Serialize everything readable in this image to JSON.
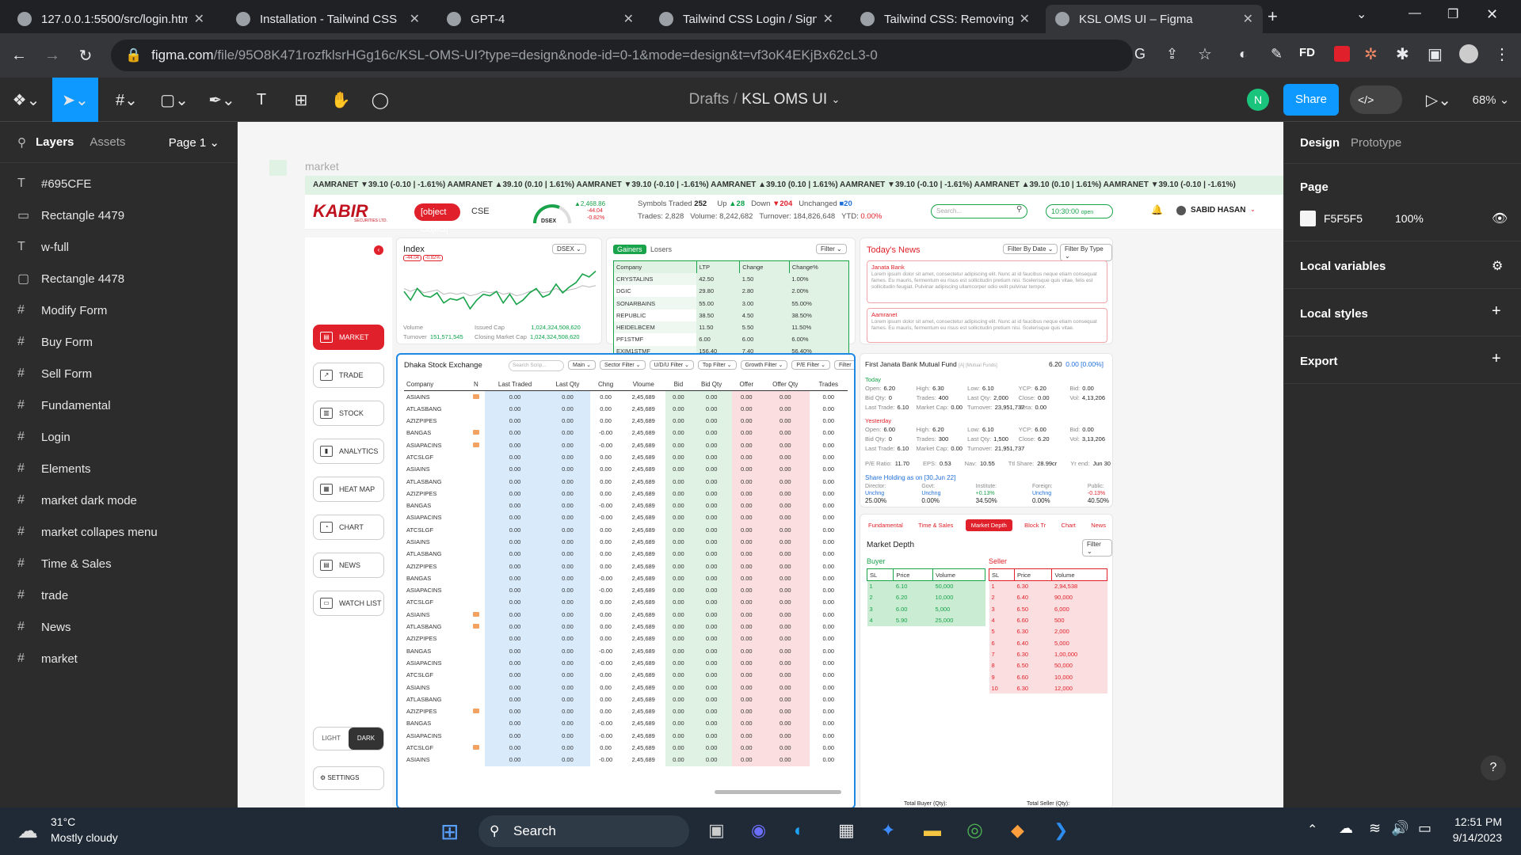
{
  "browser": {
    "tabs": [
      {
        "title": "127.0.0.1:5500/src/login.htm"
      },
      {
        "title": "Installation - Tailwind CSS"
      },
      {
        "title": "GPT-4"
      },
      {
        "title": "Tailwind CSS Login / Sign In"
      },
      {
        "title": "Tailwind CSS: Removing the"
      },
      {
        "title": "KSL OMS UI – Figma"
      }
    ],
    "url_domain": "figma.com",
    "url_path": "/file/95O8K471rozfklsrHGg16c/KSL-OMS-UI?type=design&node-id=0-1&mode=design&t=vf3oK4EKjBx62cL3-0",
    "profile": "FD"
  },
  "figma": {
    "breadcrumb_parent": "Drafts",
    "breadcrumb_sep": "/",
    "file_name": "KSL OMS UI",
    "avatar": "N",
    "share_label": "Share",
    "zoom": "68%",
    "layers_tab": "Layers",
    "assets_tab": "Assets",
    "page_selector": "Page 1",
    "layers": [
      {
        "icon": "T",
        "name": "#695CFE"
      },
      {
        "icon": "▭",
        "name": "Rectangle 4479"
      },
      {
        "icon": "T",
        "name": "w-full"
      },
      {
        "icon": "▢",
        "name": "Rectangle 4478"
      },
      {
        "icon": "#",
        "name": "Modify Form"
      },
      {
        "icon": "#",
        "name": "Buy Form"
      },
      {
        "icon": "#",
        "name": "Sell Form"
      },
      {
        "icon": "#",
        "name": "Fundamental"
      },
      {
        "icon": "#",
        "name": "Login"
      },
      {
        "icon": "#",
        "name": "Elements"
      },
      {
        "icon": "#",
        "name": "market dark mode"
      },
      {
        "icon": "#",
        "name": "market collapes menu"
      },
      {
        "icon": "#",
        "name": "Time & Sales"
      },
      {
        "icon": "#",
        "name": "trade"
      },
      {
        "icon": "#",
        "name": "News"
      },
      {
        "icon": "#",
        "name": "market"
      }
    ],
    "right": {
      "design_tab": "Design",
      "prototype_tab": "Prototype",
      "page_label": "Page",
      "page_color": "F5F5F5",
      "page_opacity": "100%",
      "local_variables": "Local variables",
      "local_styles": "Local styles",
      "export": "Export"
    },
    "frame_label": "market"
  },
  "app": {
    "ticker": "AAMRANET ▼39.10 (-0.10 | -1.61%)   AAMRANET ▲39.10 (0.10 | 1.61%)   AAMRANET ▼39.10 (-0.10 | -1.61%)   AAMRANET ▲39.10 (0.10 | 1.61%)   AAMRANET ▼39.10 (-0.10 | -1.61%)   AAMRANET ▲39.10 (0.10 | 1.61%)   AAMRANET ▼39.10 (-0.10 | -1.61%)",
    "logo": "KABIR",
    "logo_sub": "SECURITIES LTD.",
    "dse": {
      "title": "Dhaka Stock Exchange",
      "search": "Search Scrip...",
      "f": [
        "Main",
        "Sector Filter",
        "U/D/U Filter",
        "Top Filter",
        "Growth Filter",
        "P/E Filter",
        "Filter"
      ],
      "headers": [
        "Company",
        "N",
        "Last Traded",
        "Last Qty",
        "Chng",
        "Vloume",
        "Bid",
        "Bid Qty",
        "Offer",
        "Offer Qty",
        "Trades"
      ],
      "rows": [
        [
          "ASIAINS",
          "1",
          "0.00",
          "0.00",
          "0.00",
          "2,45,689",
          "0.00",
          "0.00",
          "0.00",
          "0.00",
          "0.00"
        ],
        [
          "ATLASBANG",
          "0",
          "0.00",
          "0.00",
          "0.00",
          "2,45,689",
          "0.00",
          "0.00",
          "0.00",
          "0.00",
          "0.00"
        ],
        [
          "AZIZPIPES",
          "0",
          "0.00",
          "0.00",
          "0.00",
          "2,45,689",
          "0.00",
          "0.00",
          "0.00",
          "0.00",
          "0.00"
        ],
        [
          "BANGAS",
          "1",
          "0.00",
          "0.00",
          "-0.00",
          "2,45,689",
          "0.00",
          "0.00",
          "0.00",
          "0.00",
          "0.00"
        ],
        [
          "ASIAPACINS",
          "1",
          "0.00",
          "0.00",
          "-0.00",
          "2,45,689",
          "0.00",
          "0.00",
          "0.00",
          "0.00",
          "0.00"
        ],
        [
          "ATCSLGF",
          "0",
          "0.00",
          "0.00",
          "0.00",
          "2,45,689",
          "0.00",
          "0.00",
          "0.00",
          "0.00",
          "0.00"
        ],
        [
          "ASIAINS",
          "0",
          "0.00",
          "0.00",
          "0.00",
          "2,45,689",
          "0.00",
          "0.00",
          "0.00",
          "0.00",
          "0.00"
        ],
        [
          "ATLASBANG",
          "0",
          "0.00",
          "0.00",
          "0.00",
          "2,45,689",
          "0.00",
          "0.00",
          "0.00",
          "0.00",
          "0.00"
        ],
        [
          "AZIZPIPES",
          "0",
          "0.00",
          "0.00",
          "0.00",
          "2,45,689",
          "0.00",
          "0.00",
          "0.00",
          "0.00",
          "0.00"
        ],
        [
          "BANGAS",
          "0",
          "0.00",
          "0.00",
          "-0.00",
          "2,45,689",
          "0.00",
          "0.00",
          "0.00",
          "0.00",
          "0.00"
        ],
        [
          "ASIAPACINS",
          "0",
          "0.00",
          "0.00",
          "-0.00",
          "2,45,689",
          "0.00",
          "0.00",
          "0.00",
          "0.00",
          "0.00"
        ],
        [
          "ATCSLGF",
          "0",
          "0.00",
          "0.00",
          "0.00",
          "2,45,689",
          "0.00",
          "0.00",
          "0.00",
          "0.00",
          "0.00"
        ],
        [
          "ASIAINS",
          "0",
          "0.00",
          "0.00",
          "0.00",
          "2,45,689",
          "0.00",
          "0.00",
          "0.00",
          "0.00",
          "0.00"
        ],
        [
          "ATLASBANG",
          "0",
          "0.00",
          "0.00",
          "0.00",
          "2,45,689",
          "0.00",
          "0.00",
          "0.00",
          "0.00",
          "0.00"
        ],
        [
          "AZIZPIPES",
          "0",
          "0.00",
          "0.00",
          "0.00",
          "2,45,689",
          "0.00",
          "0.00",
          "0.00",
          "0.00",
          "0.00"
        ],
        [
          "BANGAS",
          "0",
          "0.00",
          "0.00",
          "-0.00",
          "2,45,689",
          "0.00",
          "0.00",
          "0.00",
          "0.00",
          "0.00"
        ],
        [
          "ASIAPACINS",
          "0",
          "0.00",
          "0.00",
          "-0.00",
          "2,45,689",
          "0.00",
          "0.00",
          "0.00",
          "0.00",
          "0.00"
        ],
        [
          "ATCSLGF",
          "0",
          "0.00",
          "0.00",
          "0.00",
          "2,45,689",
          "0.00",
          "0.00",
          "0.00",
          "0.00",
          "0.00"
        ],
        [
          "ASIAINS",
          "1",
          "0.00",
          "0.00",
          "0.00",
          "2,45,689",
          "0.00",
          "0.00",
          "0.00",
          "0.00",
          "0.00"
        ],
        [
          "ATLASBANG",
          "1",
          "0.00",
          "0.00",
          "0.00",
          "2,45,689",
          "0.00",
          "0.00",
          "0.00",
          "0.00",
          "0.00"
        ],
        [
          "AZIZPIPES",
          "0",
          "0.00",
          "0.00",
          "0.00",
          "2,45,689",
          "0.00",
          "0.00",
          "0.00",
          "0.00",
          "0.00"
        ],
        [
          "BANGAS",
          "0",
          "0.00",
          "0.00",
          "-0.00",
          "2,45,689",
          "0.00",
          "0.00",
          "0.00",
          "0.00",
          "0.00"
        ],
        [
          "ASIAPACINS",
          "0",
          "0.00",
          "0.00",
          "-0.00",
          "2,45,689",
          "0.00",
          "0.00",
          "0.00",
          "0.00",
          "0.00"
        ],
        [
          "ATCSLGF",
          "0",
          "0.00",
          "0.00",
          "0.00",
          "2,45,689",
          "0.00",
          "0.00",
          "0.00",
          "0.00",
          "0.00"
        ],
        [
          "ASIAINS",
          "0",
          "0.00",
          "0.00",
          "0.00",
          "2,45,689",
          "0.00",
          "0.00",
          "0.00",
          "0.00",
          "0.00"
        ],
        [
          "ATLASBANG",
          "0",
          "0.00",
          "0.00",
          "0.00",
          "2,45,689",
          "0.00",
          "0.00",
          "0.00",
          "0.00",
          "0.00"
        ],
        [
          "AZIZPIPES",
          "1",
          "0.00",
          "0.00",
          "0.00",
          "2,45,689",
          "0.00",
          "0.00",
          "0.00",
          "0.00",
          "0.00"
        ],
        [
          "BANGAS",
          "0",
          "0.00",
          "0.00",
          "-0.00",
          "2,45,689",
          "0.00",
          "0.00",
          "0.00",
          "0.00",
          "0.00"
        ],
        [
          "ASIAPACINS",
          "0",
          "0.00",
          "0.00",
          "-0.00",
          "2,45,689",
          "0.00",
          "0.00",
          "0.00",
          "0.00",
          "0.00"
        ],
        [
          "ATCSLGF",
          "1",
          "0.00",
          "0.00",
          "0.00",
          "2,45,689",
          "0.00",
          "0.00",
          "0.00",
          "0.00",
          "0.00"
        ],
        [
          "ASIAINS",
          "0",
          "0.00",
          "0.00",
          "-0.00",
          "2,45,689",
          "0.00",
          "0.00",
          "0.00",
          "0.00",
          "0.00"
        ]
      ]
    },
    "cse": "CSE",
    "dsex_val": "▲2,468.86",
    "dsex_ch": "-44.04",
    "dsex_pct": "-0.82%",
    "dsex_label": "DSEX",
    "stats": {
      "symbols_label": "Symbols Traded",
      "symbols": "252",
      "up_label": "Up",
      "up": "▲28",
      "down_label": "Down",
      "down": "▼204",
      "unch_label": "Unchanged",
      "unch": "■20",
      "trades_label": "Trades:",
      "trades": "2,828",
      "volume_label": "Volume:",
      "volume": "8,242,682",
      "turnover_label": "Turnover:",
      "turnover": "184,826,648",
      "ytd_label": "YTD:",
      "ytd": "0.00%"
    },
    "search_ph": "Search...",
    "clock": "10:30:00",
    "clock_state": "open",
    "user": "SABID HASAN",
    "menu": [
      {
        "label": "MARKET",
        "icon": "▤"
      },
      {
        "label": "TRADE",
        "icon": "↗"
      },
      {
        "label": "STOCK",
        "icon": "▥"
      },
      {
        "label": "ANALYTICS",
        "icon": "▮"
      },
      {
        "label": "HEAT MAP",
        "icon": "▦"
      },
      {
        "label": "CHART",
        "icon": "◔"
      },
      {
        "label": "NEWS",
        "icon": "▤"
      },
      {
        "label": "WATCH LIST",
        "icon": "▭"
      }
    ],
    "light": "LIGHT",
    "dark": "DARK",
    "settings": "SETTINGS",
    "index": {
      "title": "Index",
      "sel": "DSEX",
      "b1": "-44.04",
      "b2": "-0.82%",
      "volume_label": "Volume",
      "volume": "",
      "turnover_label": "Turnover",
      "turnover": "151,571,545",
      "issued_label": "Issued Cap",
      "issued": "1,024,324,508,620",
      "closing_label": "Closing Market Cap",
      "closing": "1,024,324,508,620"
    },
    "gainers": {
      "tab1": "Gainers",
      "tab2": "Losers",
      "filter": "Filter",
      "headers": [
        "Company",
        "LTP",
        "Change",
        "Change%"
      ],
      "rows": [
        [
          "CRYSTALINS",
          "42.50",
          "1.50",
          "1.00%"
        ],
        [
          "DGIC",
          "29.80",
          "2.80",
          "2.00%"
        ],
        [
          "SONARBAINS",
          "55.00",
          "3.00",
          "55.00%"
        ],
        [
          "REPUBLIC",
          "38.50",
          "4.50",
          "38.50%"
        ],
        [
          "HEIDELBCEM",
          "11.50",
          "5.50",
          "11.50%"
        ],
        [
          "PF1STMF",
          "6.00",
          "6.00",
          "6.00%"
        ],
        [
          "EXIM1STMF",
          "156.40",
          "7.40",
          "56.40%"
        ]
      ]
    },
    "news": {
      "title": "Today's News",
      "f1": "Filter By Date",
      "f2": "Filter By Type",
      "items": [
        {
          "head": "Janata Bank",
          "body": "Lorem ipsum dolor sit amet, consectetur adipiscing elit. Nunc at id faucibus neque etiam consequat fames. Eu mauris, fermentum eu risus est sollicitudin pretium nisi. Scelerisque quis vitae, felis est sollicitudin feugiat. Pulvinar adipiscing ullamcorper odio velit pulvinar tempor."
        },
        {
          "head": "Aamranet",
          "body": "Lorem ipsum dolor sit amet, consectetur adipiscing elit. Nunc at id faucibus neque etiam consequat fames. Eu mauris, fermentum eu risus est sollicitudin pretium nisi. Scelerisque quis vitae."
        }
      ]
    },
    "fund": {
      "name": "First Janata Bank Mutual Fund",
      "tag": "[A] [Mutual Funds]",
      "price": "6.20",
      "change": "0.00 [0.00%]",
      "today_label": "Today",
      "yesterday_label": "Yesterday",
      "today": [
        [
          "Open:",
          "6.20",
          "High:",
          "6.30",
          "Low:",
          "6.10",
          "YCP:",
          "6.20",
          "Bid:",
          "0.00"
        ],
        [
          "Bid Qty:",
          "0",
          "Trades:",
          "400",
          "Last Qty:",
          "2,000",
          "Close:",
          "0.00",
          "Vol:",
          "4,13,206"
        ],
        [
          "Last Trade:",
          "6.10",
          "Market Cap:",
          "0.00",
          "Turnover:",
          "23,951,737",
          "Beta:",
          "0.00",
          "",
          ""
        ]
      ],
      "yest": [
        [
          "Open:",
          "6.00",
          "High:",
          "6.20",
          "Low:",
          "6.10",
          "YCP:",
          "6.00",
          "Bid:",
          "0.00"
        ],
        [
          "Bid Qty:",
          "0",
          "Trades:",
          "300",
          "Last Qty:",
          "1,500",
          "Close:",
          "6.20",
          "Vol:",
          "3,13,206"
        ],
        [
          "Last Trade:",
          "6.10",
          "Market Cap:",
          "0.00",
          "Turnover:",
          "21,951,737",
          "",
          "",
          "",
          ""
        ]
      ],
      "ratios": [
        [
          "P/E Ratio:",
          "11.70"
        ],
        [
          "EPS:",
          "0.53"
        ],
        [
          "Nav:",
          "10.55"
        ],
        [
          "Ttl Share:",
          "28.99cr"
        ],
        [
          "Yr end:",
          "Jun 30"
        ]
      ],
      "share_title": "Share Holding as on [30,Jun 22]",
      "holders": [
        {
          "k": "Director:",
          "c": "Unchng",
          "v": "25.00%"
        },
        {
          "k": "Govt:",
          "c": "Unchng",
          "v": "0.00%"
        },
        {
          "k": "Institute:",
          "c": "+0.13%",
          "v": "34.50%"
        },
        {
          "k": "Foreign:",
          "c": "Unchng",
          "v": "0.00%"
        },
        {
          "k": "Public:",
          "c": "-0.13%",
          "v": "40.50%"
        }
      ]
    },
    "depth": {
      "tabs": [
        "Fundamental",
        "Time & Sales",
        "Market Depth",
        "Block Tr",
        "Chart",
        "News"
      ],
      "title": "Market Depth",
      "filter": "Filter",
      "buyer": "Buyer",
      "seller": "Seller",
      "bh": [
        "SL",
        "Price",
        "Volume"
      ],
      "sh": [
        "SL",
        "Price",
        "Volume"
      ],
      "buy": [
        [
          "1",
          "6.10",
          "50,000"
        ],
        [
          "2",
          "6.20",
          "10,000"
        ],
        [
          "3",
          "6.00",
          "5,000"
        ],
        [
          "4",
          "5.90",
          "25,000"
        ]
      ],
      "sell": [
        [
          "1",
          "6.30",
          "2,94,538"
        ],
        [
          "2",
          "6.40",
          "90,000"
        ],
        [
          "3",
          "6.50",
          "6,000"
        ],
        [
          "4",
          "6.60",
          "500"
        ],
        [
          "5",
          "6.30",
          "2,000"
        ],
        [
          "6",
          "6.40",
          "5,000"
        ],
        [
          "7",
          "6.30",
          "1,00,000"
        ],
        [
          "8",
          "6.50",
          "50,000"
        ],
        [
          "9",
          "6.60",
          "10,000"
        ],
        [
          "10",
          "6.30",
          "12,000"
        ]
      ],
      "total_buy": "Total Buyer (Qty):",
      "total_sell": "Total Seller (Qty):"
    }
  },
  "chart_data": {
    "type": "line",
    "title": "Index",
    "series": [
      {
        "values": [
          58,
          52,
          60,
          55,
          54,
          57,
          50,
          53,
          52,
          54,
          46,
          52,
          56,
          55,
          58,
          50,
          56,
          49,
          52,
          57,
          60,
          54,
          56,
          63,
          57,
          61,
          64,
          70,
          68,
          72
        ]
      },
      {
        "values": [
          60,
          58,
          60,
          57,
          58,
          59,
          56,
          57,
          56,
          57,
          55,
          56,
          58,
          57,
          58,
          56,
          57,
          55,
          56,
          58,
          59,
          57,
          58,
          60,
          58,
          59,
          60,
          62,
          61,
          62
        ]
      }
    ],
    "colors": [
      "#19a34a",
      "#b8b8b8"
    ]
  },
  "taskbar": {
    "temp": "31°C",
    "weather": "Mostly cloudy",
    "search": "Search",
    "time": "12:51 PM",
    "date": "9/14/2023"
  }
}
